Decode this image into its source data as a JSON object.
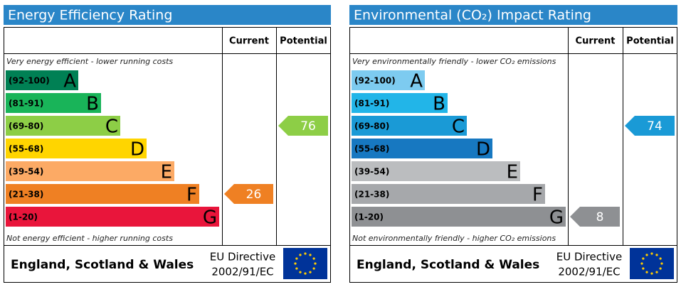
{
  "panels": [
    {
      "title": "Energy Efficiency Rating",
      "headers": [
        "Current",
        "Potential"
      ],
      "top_note": "Very energy efficient - lower running costs",
      "bottom_note": "Not energy efficient - higher running costs",
      "bands": [
        {
          "range": "(92-100)",
          "letter": "A",
          "color": "#008054"
        },
        {
          "range": "(81-91)",
          "letter": "B",
          "color": "#19b459"
        },
        {
          "range": "(69-80)",
          "letter": "C",
          "color": "#8dce46"
        },
        {
          "range": "(55-68)",
          "letter": "D",
          "color": "#ffd500"
        },
        {
          "range": "(39-54)",
          "letter": "E",
          "color": "#fcaa65"
        },
        {
          "range": "(21-38)",
          "letter": "F",
          "color": "#ef8023"
        },
        {
          "range": "(1-20)",
          "letter": "G",
          "color": "#e9153b"
        }
      ],
      "current": 26,
      "potential": 76,
      "region": "England, Scotland & Wales",
      "directive": [
        "EU Directive",
        "2002/91/EC"
      ]
    },
    {
      "title": "Environmental (CO₂) Impact Rating",
      "headers": [
        "Current",
        "Potential"
      ],
      "top_note": "Very environmentally friendly - lower CO₂ emissions",
      "bottom_note": "Not environmentally friendly - higher CO₂ emissions",
      "bands": [
        {
          "range": "(92-100)",
          "letter": "A",
          "color": "#7dcbf0"
        },
        {
          "range": "(81-91)",
          "letter": "B",
          "color": "#22b5e8"
        },
        {
          "range": "(69-80)",
          "letter": "C",
          "color": "#1a9ad6"
        },
        {
          "range": "(55-68)",
          "letter": "D",
          "color": "#1778c1"
        },
        {
          "range": "(39-54)",
          "letter": "E",
          "color": "#bbbdbf"
        },
        {
          "range": "(21-38)",
          "letter": "F",
          "color": "#a6a8ab"
        },
        {
          "range": "(1-20)",
          "letter": "G",
          "color": "#8e9093"
        }
      ],
      "current": 8,
      "potential": 74,
      "region": "England, Scotland & Wales",
      "directive": [
        "EU Directive",
        "2002/91/EC"
      ]
    }
  ]
}
